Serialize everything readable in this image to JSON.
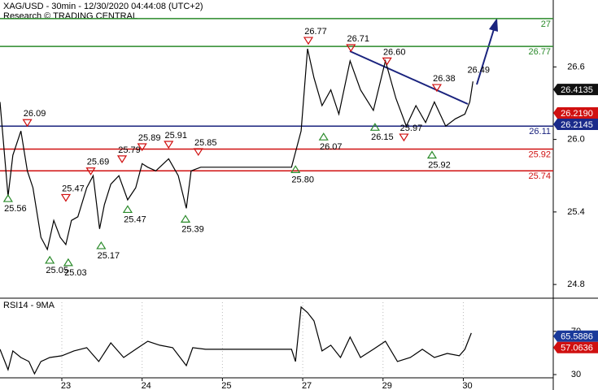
{
  "chart_data": [
    {
      "type": "line",
      "title": "XAG/USD - 30min - 12/30/2020 04:44:08 (UTC+2)",
      "subtitle": "Research © TRADING CENTRAL",
      "color": "#000000",
      "x": [
        0.23,
        0.33,
        0.39,
        0.49,
        0.57,
        0.64,
        0.74,
        0.82,
        0.9,
        0.98,
        1.05,
        1.12,
        1.2,
        1.31,
        1.39,
        1.47,
        1.53,
        1.61,
        1.71,
        1.82,
        1.92,
        2.0,
        2.07,
        2.17,
        2.33,
        2.45,
        2.55,
        2.61,
        2.73,
        2.94,
        3.86,
        3.98,
        4.06,
        4.14,
        4.24,
        4.35,
        4.45,
        4.59,
        4.72,
        4.88,
        5.03,
        5.16,
        5.29,
        5.41,
        5.53,
        5.64,
        5.78,
        5.9,
        6.02,
        6.08,
        6.12
      ],
      "values": [
        26.31,
        25.53,
        25.87,
        26.07,
        25.74,
        25.6,
        25.19,
        25.09,
        25.33,
        25.19,
        25.13,
        25.33,
        25.36,
        25.6,
        25.7,
        25.26,
        25.46,
        25.63,
        25.7,
        25.5,
        25.6,
        25.8,
        25.77,
        25.74,
        25.84,
        25.7,
        25.43,
        25.74,
        25.77,
        25.77,
        25.77,
        26.07,
        26.75,
        26.51,
        26.28,
        26.41,
        26.21,
        26.65,
        26.41,
        26.24,
        26.65,
        26.34,
        26.11,
        26.28,
        26.14,
        26.31,
        26.11,
        26.17,
        26.21,
        26.31,
        26.48
      ],
      "xlim": [
        0.23,
        7.12
      ],
      "ylim": [
        24.7,
        27.12
      ],
      "yticks": [
        24.8,
        25.4,
        {
          "value": 26,
          "label": "26.0"
        },
        26.6
      ],
      "levels": [
        {
          "value": 27,
          "color": "#2a8a2a"
        },
        {
          "value": 26.77,
          "color": "#2a8a2a"
        },
        {
          "value": 26.11,
          "color": "#1a237e"
        },
        {
          "value": 25.92,
          "color": "#d01010"
        },
        {
          "value": 25.74,
          "color": "#d01010"
        }
      ],
      "annotations": [
        {
          "x": 0.57,
          "value": 26.09,
          "marker": "down"
        },
        {
          "x": 0.33,
          "value": 25.56,
          "marker": "up"
        },
        {
          "x": 1.05,
          "value": 25.47,
          "marker": "down"
        },
        {
          "x": 1.36,
          "value": 25.69,
          "marker": "down"
        },
        {
          "x": 1.75,
          "value": 25.79,
          "marker": "down"
        },
        {
          "x": 2.0,
          "value": 25.89,
          "marker": "down"
        },
        {
          "x": 2.33,
          "value": 25.91,
          "marker": "down"
        },
        {
          "x": 2.7,
          "value": 25.85,
          "marker": "down"
        },
        {
          "x": 1.82,
          "value": 25.47,
          "marker": "up"
        },
        {
          "x": 1.49,
          "value": 25.17,
          "marker": "up"
        },
        {
          "x": 0.85,
          "value": 25.05,
          "marker": "up"
        },
        {
          "x": 1.08,
          "value": 25.03,
          "marker": "up"
        },
        {
          "x": 2.54,
          "value": 25.39,
          "marker": "up"
        },
        {
          "x": 3.91,
          "value": 25.8,
          "label": "25.80",
          "marker": "up"
        },
        {
          "x": 4.07,
          "value": 26.77,
          "marker": "down"
        },
        {
          "x": 4.6,
          "value": 26.71,
          "marker": "down"
        },
        {
          "x": 5.05,
          "value": 26.6,
          "label": "26.60",
          "marker": "down"
        },
        {
          "x": 4.26,
          "value": 26.07,
          "marker": "up"
        },
        {
          "x": 4.9,
          "value": 26.15,
          "marker": "up"
        },
        {
          "x": 5.26,
          "value": 25.97,
          "marker": "down"
        },
        {
          "x": 5.61,
          "value": 25.92,
          "marker": "up"
        },
        {
          "x": 5.67,
          "value": 26.38,
          "marker": "down"
        },
        {
          "x": 6.19,
          "value": 26.49
        }
      ],
      "price_tags": [
        {
          "value": 26.4135,
          "color": "#111111"
        },
        {
          "value": 26.219,
          "label": "26.2190",
          "color": "#d01010"
        },
        {
          "value": 26.2145,
          "color": "#1a2a8a"
        }
      ]
    },
    {
      "type": "line",
      "title": "RSI14 - 9MA",
      "color": "#000000",
      "x": [
        0.23,
        0.33,
        0.39,
        0.49,
        0.59,
        0.66,
        0.74,
        0.85,
        1.0,
        1.15,
        1.31,
        1.46,
        1.61,
        1.77,
        1.92,
        2.07,
        2.22,
        2.38,
        2.55,
        2.63,
        2.79,
        2.94,
        3.86,
        3.91,
        3.98,
        4.06,
        4.14,
        4.24,
        4.35,
        4.47,
        4.59,
        4.72,
        4.88,
        5.03,
        5.18,
        5.34,
        5.49,
        5.64,
        5.8,
        5.95,
        6.02,
        6.1
      ],
      "values": [
        53.4,
        34.5,
        51.9,
        45.8,
        42.1,
        30.8,
        42.1,
        45.8,
        47.4,
        51.9,
        54.9,
        42.1,
        59.4,
        45.8,
        53.4,
        60.9,
        57.2,
        54.9,
        38.3,
        54.9,
        53.4,
        53.4,
        53.4,
        42.1,
        92.6,
        87.4,
        79.8,
        51.9,
        57.2,
        45.8,
        64.7,
        45.8,
        53.4,
        60.9,
        42.1,
        45.8,
        53.4,
        45.8,
        49.6,
        47.4,
        53.4,
        68.5
      ],
      "xlim": [
        0.23,
        7.12
      ],
      "ylim": [
        27,
        97
      ],
      "yticks": [
        30,
        70
      ],
      "xticks": [
        {
          "value": 1,
          "label": "23"
        },
        {
          "value": 2,
          "label": "24"
        },
        {
          "value": 3,
          "label": "25"
        },
        {
          "value": 4,
          "label": "27"
        },
        {
          "value": 5,
          "label": "29"
        },
        {
          "value": 6,
          "label": "30"
        }
      ],
      "price_tags": [
        {
          "value": 65.5886,
          "color": "#1a3a9a"
        },
        {
          "value": 57.0636,
          "color": "#d01010"
        }
      ]
    }
  ]
}
